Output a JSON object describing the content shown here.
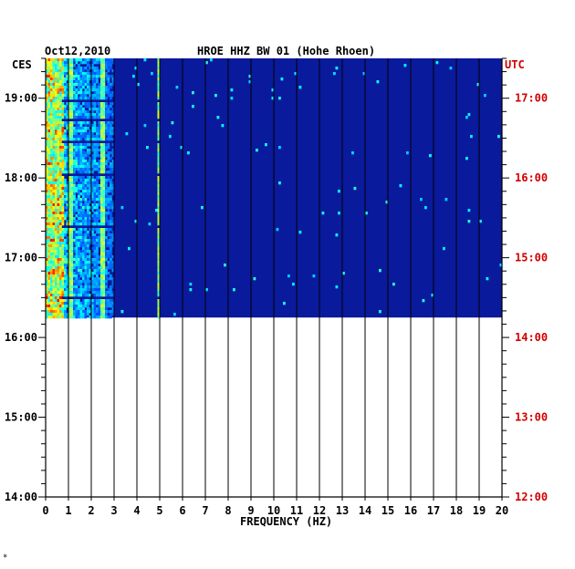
{
  "chart_data": {
    "type": "heatmap",
    "title": "HROE HHZ BW 01 (Hohe Rhoen)",
    "date": "Oct12,2010",
    "left_axis_label": "CES",
    "right_axis_label": "UTC",
    "xlabel": "FREQUENCY (HZ)",
    "x_ticks": [
      "0",
      "1",
      "2",
      "3",
      "4",
      "5",
      "6",
      "7",
      "8",
      "9",
      "10",
      "11",
      "12",
      "13",
      "14",
      "15",
      "16",
      "17",
      "18",
      "19",
      "20"
    ],
    "xlim": [
      0,
      20
    ],
    "left_time_ticks": [
      "19:00",
      "18:00",
      "17:00",
      "16:00",
      "15:00",
      "14:00"
    ],
    "right_time_ticks": [
      "17:00",
      "16:00",
      "15:00",
      "14:00",
      "13:00",
      "12:00"
    ],
    "time_range_ces": [
      "14:00",
      "19:30"
    ],
    "data_covered_ces": [
      "16:15",
      "19:30"
    ],
    "colormap": "jet",
    "background_color": "#0a1a9c",
    "right_label_color": "#d00000",
    "persistent_lines_hz": [
      1.05,
      2.45,
      4.9
    ],
    "energy_concentration_hz": [
      0,
      3
    ]
  },
  "footer_mark": "*"
}
